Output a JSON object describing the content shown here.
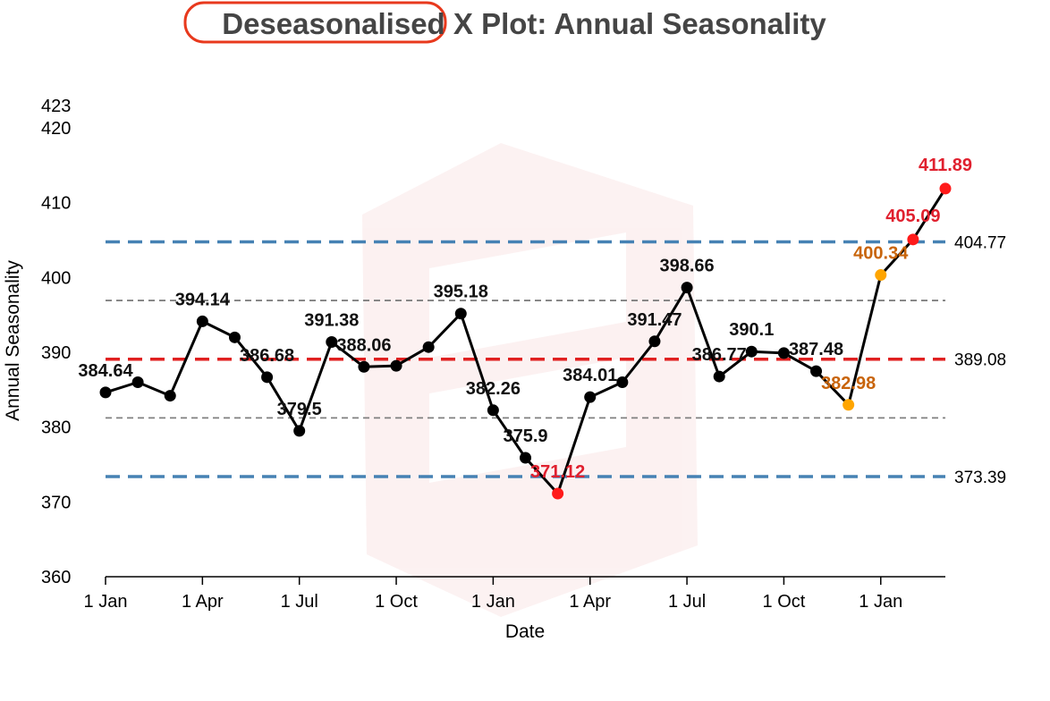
{
  "title": {
    "highlight": "Deseasonalised",
    "rest": " X Plot: Annual Seasonality",
    "highlight_color": "#e8391d"
  },
  "colors": {
    "line": "#000000",
    "mean": "#e02020",
    "limit": "#4682b4",
    "sigma": "#808080",
    "point": "#000000",
    "point_high": "#ff1a1a",
    "point_warn": "#ffa500",
    "label_high": "#e0202e",
    "label_warn": "#c8640a"
  },
  "chart_data": {
    "type": "line",
    "xlabel": "Date",
    "ylabel": "Annual Seasonality",
    "ylim": [
      360,
      423
    ],
    "y_ticks": [
      360,
      370,
      380,
      390,
      400,
      410,
      420,
      423
    ],
    "x_ticks": [
      {
        "label": "1 Jan",
        "month": 0
      },
      {
        "label": "1 Apr",
        "month": 3
      },
      {
        "label": "1 Jul",
        "month": 6
      },
      {
        "label": "1 Oct",
        "month": 9
      },
      {
        "label": "1 Jan",
        "month": 12
      },
      {
        "label": "1 Apr",
        "month": 15
      },
      {
        "label": "1 Jul",
        "month": 18
      },
      {
        "label": "1 Oct",
        "month": 21
      },
      {
        "label": "1 Jan",
        "month": 24
      }
    ],
    "x_range_months": [
      0,
      26
    ],
    "reference_lines": [
      {
        "name": "upper",
        "value": 404.77,
        "label": "404.77",
        "style": "limit"
      },
      {
        "name": "upper-sigma",
        "value": 396.93,
        "label": "",
        "style": "sigma"
      },
      {
        "name": "mean",
        "value": 389.08,
        "label": "389.08",
        "style": "mean"
      },
      {
        "name": "lower-sigma",
        "value": 381.23,
        "label": "",
        "style": "sigma"
      },
      {
        "name": "lower",
        "value": 373.39,
        "label": "373.39",
        "style": "limit"
      }
    ],
    "points": [
      {
        "month": 0,
        "value": 384.64,
        "label": "384.64",
        "status": "normal"
      },
      {
        "month": 1,
        "value": 386.0,
        "label": "",
        "status": "normal"
      },
      {
        "month": 2,
        "value": 384.2,
        "label": "",
        "status": "normal"
      },
      {
        "month": 3,
        "value": 394.14,
        "label": "394.14",
        "status": "normal"
      },
      {
        "month": 4,
        "value": 392.0,
        "label": "",
        "status": "normal"
      },
      {
        "month": 5,
        "value": 386.68,
        "label": "386.68",
        "status": "normal"
      },
      {
        "month": 6,
        "value": 379.5,
        "label": "379.5",
        "status": "normal"
      },
      {
        "month": 7,
        "value": 391.38,
        "label": "391.38",
        "status": "normal"
      },
      {
        "month": 8,
        "value": 388.06,
        "label": "388.06",
        "status": "normal"
      },
      {
        "month": 9,
        "value": 388.2,
        "label": "",
        "status": "normal"
      },
      {
        "month": 10,
        "value": 390.7,
        "label": "",
        "status": "normal"
      },
      {
        "month": 11,
        "value": 395.18,
        "label": "395.18",
        "status": "normal"
      },
      {
        "month": 12,
        "value": 382.26,
        "label": "382.26",
        "status": "normal"
      },
      {
        "month": 13,
        "value": 375.9,
        "label": "375.9",
        "status": "normal"
      },
      {
        "month": 14,
        "value": 371.12,
        "label": "371.12",
        "status": "high"
      },
      {
        "month": 15,
        "value": 384.01,
        "label": "384.01",
        "status": "normal"
      },
      {
        "month": 16,
        "value": 386.0,
        "label": "",
        "status": "normal"
      },
      {
        "month": 17,
        "value": 391.47,
        "label": "391.47",
        "status": "normal"
      },
      {
        "month": 18,
        "value": 398.66,
        "label": "398.66",
        "status": "normal"
      },
      {
        "month": 19,
        "value": 386.77,
        "label": "386.77",
        "status": "normal"
      },
      {
        "month": 20,
        "value": 390.1,
        "label": "390.1",
        "status": "normal"
      },
      {
        "month": 21,
        "value": 389.9,
        "label": "",
        "status": "normal"
      },
      {
        "month": 22,
        "value": 387.48,
        "label": "387.48",
        "status": "normal"
      },
      {
        "month": 23,
        "value": 382.98,
        "label": "382.98",
        "status": "warn"
      },
      {
        "month": 24,
        "value": 400.34,
        "label": "400.34",
        "status": "warn"
      },
      {
        "month": 25,
        "value": 405.09,
        "label": "405.09",
        "status": "high"
      },
      {
        "month": 26,
        "value": 411.89,
        "label": "411.89",
        "status": "high"
      }
    ]
  }
}
